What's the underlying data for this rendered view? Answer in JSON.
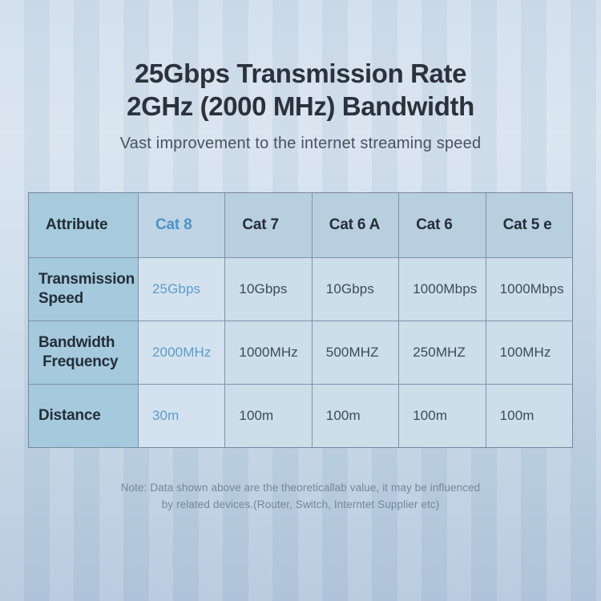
{
  "header": {
    "title_line1": "25Gbps Transmission Rate",
    "title_line2": "2GHz (2000 MHz) Bandwidth",
    "subtitle": "Vast improvement to the internet streaming speed"
  },
  "table": {
    "columns": [
      "Attribute",
      "Cat 8",
      "Cat 7",
      "Cat 6 A",
      "Cat 6",
      "Cat 5 e"
    ],
    "highlight_column": "Cat 8",
    "rows": [
      {
        "label": "Transmission\nSpeed",
        "values": [
          "25Gbps",
          "10Gbps",
          "10Gbps",
          "1000Mbps",
          "1000Mbps"
        ]
      },
      {
        "label": "Bandwidth\n Frequency",
        "values": [
          "2000MHz",
          "1000MHz",
          "500MHZ",
          "250MHZ",
          "100MHz"
        ]
      },
      {
        "label": "Distance",
        "values": [
          "30m",
          "100m",
          "100m",
          "100m",
          "100m"
        ]
      }
    ]
  },
  "note": {
    "line1": "Note: Data shown above are the theoreticallab value, it may be influenced",
    "line2": "by related devices.(Router, Switch, Interntet Supplier etc)"
  },
  "colors": {
    "accent_blue": "#4e92c6",
    "accent_blue_values": "#5d9bcd",
    "title_text": "#2b323c",
    "subtitle_text": "#47525f",
    "table_first_column_bg": "#a5c9dd",
    "table_header_bg": "#b8cfe0",
    "table_body_bg": "#ccdeea",
    "table_grid_line": "#7e92a5",
    "note_text": "#75869b",
    "page_background_top": "#d0deeb",
    "page_background_bottom": "#b3c7dc"
  },
  "chart_data": {
    "type": "table",
    "title": "25Gbps Transmission Rate 2GHz (2000 MHz) Bandwidth",
    "subtitle": "Vast improvement to the internet streaming speed",
    "columns": [
      "Attribute",
      "Cat 8",
      "Cat 7",
      "Cat 6 A",
      "Cat 6",
      "Cat 5 e"
    ],
    "rows": [
      [
        "Transmission Speed",
        "25Gbps",
        "10Gbps",
        "10Gbps",
        "1000Mbps",
        "1000Mbps"
      ],
      [
        "Bandwidth Frequency",
        "2000MHz",
        "1000MHz",
        "500MHZ",
        "250MHZ",
        "100MHz"
      ],
      [
        "Distance",
        "30m",
        "100m",
        "100m",
        "100m",
        "100m"
      ]
    ],
    "highlight_column": "Cat 8",
    "note": "Note: Data shown above are the theoreticallab value, it may be influenced by related devices.(Router, Switch, Interntet Supplier etc)"
  }
}
